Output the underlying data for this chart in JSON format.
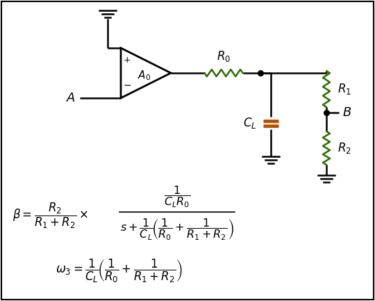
{
  "background_color": "#ffffff",
  "border_color": "#000000",
  "resistor_color": "#2d6e00",
  "capacitor_color": "#b85000",
  "wire_color": "#000000",
  "fig_width": 5.4,
  "fig_height": 4.33,
  "dpi": 100
}
